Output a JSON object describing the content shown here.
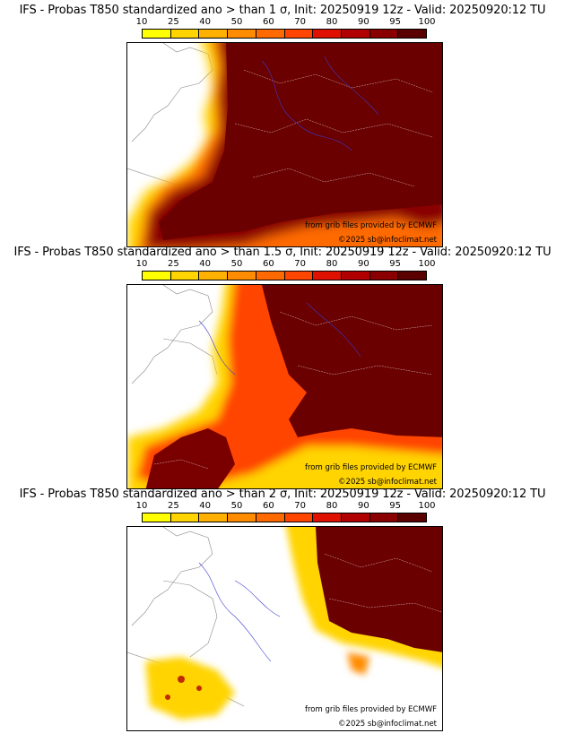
{
  "colorbar": {
    "labels": [
      "10",
      "25",
      "40",
      "50",
      "60",
      "70",
      "80",
      "90",
      "95",
      "100"
    ],
    "colors": [
      "#ffff00",
      "#ffd400",
      "#ffb000",
      "#ff8c00",
      "#ff6a00",
      "#ff4500",
      "#e01000",
      "#b00000",
      "#8a0000",
      "#5a0000"
    ]
  },
  "panels": [
    {
      "title": "IFS - Probas T850  standardized ano > than 1 σ, Init: 20250919 12z - Valid: 20250920:12 TU",
      "ecmwf_credit": "from grib files provided by ECMWF",
      "copyright": "©2025 sb@infoclimat.net",
      "level": 1
    },
    {
      "title": "IFS - Probas T850  standardized ano > than 1.5 σ, Init: 20250919 12z - Valid: 20250920:12 TU",
      "ecmwf_credit": "from grib files provided by ECMWF",
      "copyright": "©2025 sb@infoclimat.net",
      "level": 2
    },
    {
      "title": "IFS - Probas T850  standardized ano > than 2 σ, Init: 20250919 12z - Valid: 20250920:12 TU",
      "ecmwf_credit": "from grib files provided by ECMWF",
      "copyright": "©2025 sb@infoclimat.net",
      "level": 3
    }
  ]
}
